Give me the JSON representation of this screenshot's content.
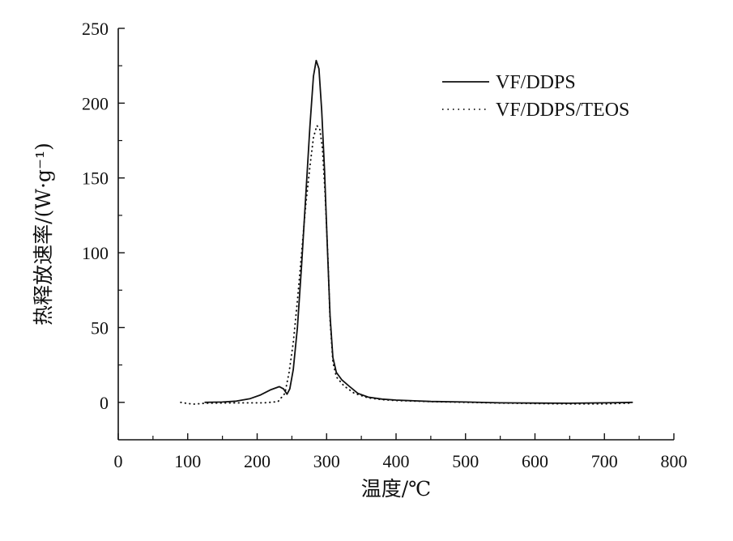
{
  "chart_data": {
    "type": "line",
    "title": "",
    "xlabel": "温度/℃",
    "ylabel": "热释放速率/(W·g⁻¹)",
    "xlim": [
      0,
      800
    ],
    "ylim": [
      -25,
      250
    ],
    "x_ticks": [
      0,
      100,
      200,
      300,
      400,
      500,
      600,
      700,
      800
    ],
    "y_ticks": [
      0,
      50,
      100,
      150,
      200,
      250
    ],
    "x_tick_labels": [
      "0",
      "100",
      "200",
      "300",
      "400",
      "500",
      "600",
      "700",
      "800"
    ],
    "y_tick_labels": [
      "0",
      "50",
      "100",
      "150",
      "200",
      "250"
    ],
    "grid": false,
    "legend_position": "top-right",
    "series": [
      {
        "name": "VF/DDPS",
        "style": "solid",
        "color": "#111111",
        "points": [
          [
            125,
            0
          ],
          [
            150,
            0.2
          ],
          [
            170,
            0.8
          ],
          [
            190,
            2.5
          ],
          [
            205,
            5
          ],
          [
            220,
            8.5
          ],
          [
            232,
            10.5
          ],
          [
            238,
            9
          ],
          [
            243,
            5.5
          ],
          [
            247,
            9
          ],
          [
            252,
            22
          ],
          [
            258,
            50
          ],
          [
            264,
            92
          ],
          [
            270,
            138
          ],
          [
            276,
            185
          ],
          [
            281,
            218
          ],
          [
            285,
            228.5
          ],
          [
            289,
            223
          ],
          [
            293,
            195
          ],
          [
            297,
            155
          ],
          [
            301,
            105
          ],
          [
            305,
            58
          ],
          [
            309,
            30
          ],
          [
            314,
            20
          ],
          [
            322,
            15
          ],
          [
            332,
            11
          ],
          [
            345,
            6
          ],
          [
            360,
            3.5
          ],
          [
            380,
            2.2
          ],
          [
            400,
            1.5
          ],
          [
            450,
            0.6
          ],
          [
            500,
            0.2
          ],
          [
            550,
            -0.3
          ],
          [
            600,
            -0.5
          ],
          [
            650,
            -0.6
          ],
          [
            700,
            -0.3
          ],
          [
            740,
            0
          ]
        ]
      },
      {
        "name": "VF/DDPS/TEOS",
        "style": "dotted",
        "color": "#111111",
        "points": [
          [
            90,
            0
          ],
          [
            100,
            -0.8
          ],
          [
            110,
            -1.2
          ],
          [
            125,
            -0.6
          ],
          [
            150,
            -0.4
          ],
          [
            180,
            -0.3
          ],
          [
            210,
            -0.3
          ],
          [
            230,
            0.5
          ],
          [
            240,
            6
          ],
          [
            246,
            20
          ],
          [
            252,
            40
          ],
          [
            258,
            68
          ],
          [
            264,
            100
          ],
          [
            270,
            132
          ],
          [
            276,
            158
          ],
          [
            281,
            177
          ],
          [
            286,
            185
          ],
          [
            290,
            183
          ],
          [
            294,
            170
          ],
          [
            298,
            138
          ],
          [
            302,
            95
          ],
          [
            305,
            55
          ],
          [
            309,
            27
          ],
          [
            314,
            17
          ],
          [
            325,
            11
          ],
          [
            340,
            6
          ],
          [
            360,
            3
          ],
          [
            380,
            1.8
          ],
          [
            400,
            1.2
          ],
          [
            450,
            0.5
          ],
          [
            500,
            0
          ],
          [
            550,
            -0.5
          ],
          [
            600,
            -0.8
          ],
          [
            650,
            -1
          ],
          [
            700,
            -1
          ],
          [
            740,
            -0.5
          ]
        ]
      }
    ]
  }
}
